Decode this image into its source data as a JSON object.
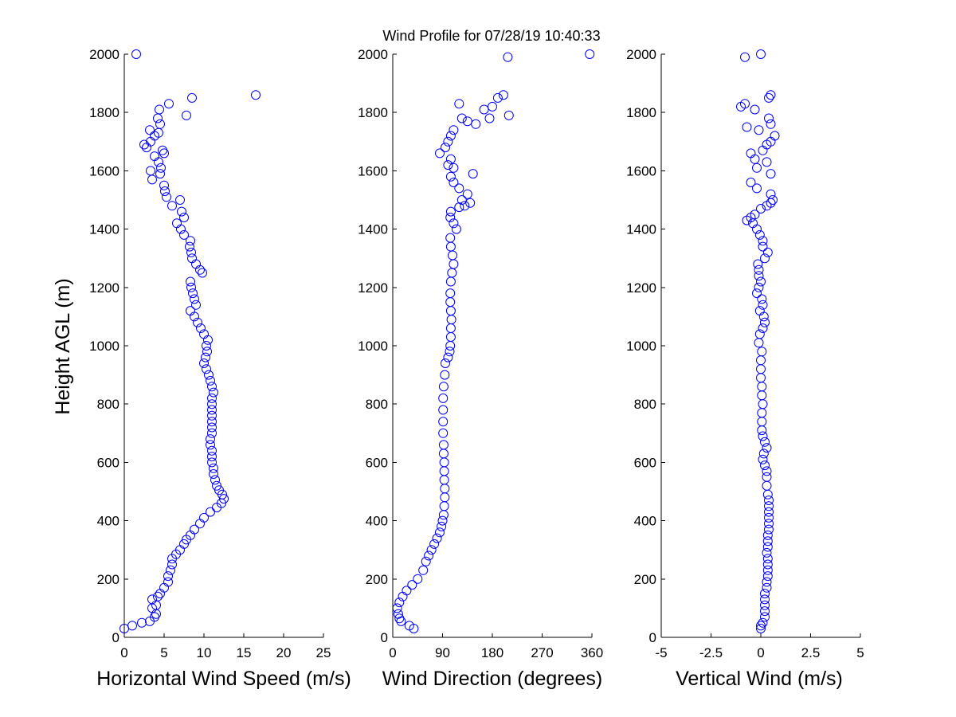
{
  "figure": {
    "title": "Wind Profile for  07/28/19 10:40:33",
    "marker_color": "#0000ff",
    "marker_shape": "circle-open"
  },
  "chart_data": [
    {
      "type": "scatter",
      "id": "speed",
      "xlabel": "Horizontal Wind Speed (m/s)",
      "ylabel": "Height AGL (m)",
      "xlim": [
        0,
        25
      ],
      "ylim": [
        0,
        2000
      ],
      "xticks": [
        "0",
        "5",
        "10",
        "15",
        "20",
        "25"
      ],
      "yticks": [
        "0",
        "200",
        "400",
        "600",
        "800",
        "1000",
        "1200",
        "1400",
        "1600",
        "1800",
        "2000"
      ],
      "xtick_values": [
        0,
        5,
        10,
        15,
        20,
        25
      ],
      "ytick_values": [
        0,
        200,
        400,
        600,
        800,
        1000,
        1200,
        1400,
        1600,
        1800,
        2000
      ],
      "points": [
        [
          0,
          30
        ],
        [
          1,
          40
        ],
        [
          2.2,
          50
        ],
        [
          3.2,
          55
        ],
        [
          3.8,
          70
        ],
        [
          4,
          80
        ],
        [
          3.5,
          100
        ],
        [
          4,
          110
        ],
        [
          3.5,
          130
        ],
        [
          4.2,
          140
        ],
        [
          4.5,
          150
        ],
        [
          5,
          170
        ],
        [
          5.5,
          190
        ],
        [
          5.5,
          210
        ],
        [
          5.8,
          230
        ],
        [
          6,
          250
        ],
        [
          6,
          270
        ],
        [
          6.5,
          285
        ],
        [
          7,
          300
        ],
        [
          7.5,
          320
        ],
        [
          7.8,
          335
        ],
        [
          8.3,
          350
        ],
        [
          8.8,
          370
        ],
        [
          9.5,
          390
        ],
        [
          10,
          410
        ],
        [
          10.8,
          430
        ],
        [
          11.6,
          445
        ],
        [
          12.2,
          460
        ],
        [
          12.5,
          475
        ],
        [
          12.3,
          490
        ],
        [
          11.9,
          505
        ],
        [
          11.6,
          520
        ],
        [
          11.4,
          540
        ],
        [
          11.2,
          560
        ],
        [
          11.2,
          580
        ],
        [
          11,
          600
        ],
        [
          11,
          620
        ],
        [
          11,
          640
        ],
        [
          10.8,
          660
        ],
        [
          10.8,
          680
        ],
        [
          11,
          700
        ],
        [
          11,
          720
        ],
        [
          11,
          740
        ],
        [
          11,
          760
        ],
        [
          11,
          780
        ],
        [
          11,
          800
        ],
        [
          11,
          820
        ],
        [
          11.2,
          840
        ],
        [
          11,
          860
        ],
        [
          10.8,
          880
        ],
        [
          10.6,
          900
        ],
        [
          10.3,
          920
        ],
        [
          10,
          940
        ],
        [
          10.2,
          960
        ],
        [
          10.4,
          980
        ],
        [
          10.3,
          1000
        ],
        [
          10.5,
          1020
        ],
        [
          10,
          1040
        ],
        [
          9.6,
          1060
        ],
        [
          9.2,
          1080
        ],
        [
          8.8,
          1100
        ],
        [
          8.3,
          1120
        ],
        [
          9,
          1140
        ],
        [
          8.8,
          1160
        ],
        [
          8.6,
          1180
        ],
        [
          8.4,
          1200
        ],
        [
          8.3,
          1220
        ],
        [
          9.8,
          1250
        ],
        [
          9.5,
          1260
        ],
        [
          9,
          1280
        ],
        [
          8.5,
          1300
        ],
        [
          8.4,
          1320
        ],
        [
          8.2,
          1340
        ],
        [
          8.3,
          1360
        ],
        [
          7.5,
          1380
        ],
        [
          7.1,
          1400
        ],
        [
          6.6,
          1420
        ],
        [
          7.5,
          1440
        ],
        [
          7.2,
          1460
        ],
        [
          6,
          1480
        ],
        [
          7,
          1500
        ],
        [
          5.3,
          1510
        ],
        [
          5.1,
          1530
        ],
        [
          5,
          1550
        ],
        [
          3.5,
          1570
        ],
        [
          4.5,
          1590
        ],
        [
          3.3,
          1600
        ],
        [
          4.6,
          1610
        ],
        [
          4.3,
          1630
        ],
        [
          3.8,
          1650
        ],
        [
          5,
          1660
        ],
        [
          4.8,
          1670
        ],
        [
          2.8,
          1680
        ],
        [
          2.5,
          1690
        ],
        [
          3.3,
          1700
        ],
        [
          3.8,
          1720
        ],
        [
          4.3,
          1730
        ],
        [
          3.2,
          1740
        ],
        [
          4.5,
          1760
        ],
        [
          4.2,
          1780
        ],
        [
          7.8,
          1790
        ],
        [
          4.4,
          1810
        ],
        [
          5.6,
          1830
        ],
        [
          8.5,
          1850
        ],
        [
          16.5,
          1860
        ],
        [
          1.5,
          2000
        ]
      ]
    },
    {
      "type": "scatter",
      "id": "direction",
      "xlabel": "Wind Direction (degrees)",
      "ylabel": "",
      "xlim": [
        0,
        360
      ],
      "ylim": [
        0,
        2000
      ],
      "xticks": [
        "0",
        "90",
        "180",
        "270",
        "360"
      ],
      "yticks": [
        "0",
        "200",
        "400",
        "600",
        "800",
        "1000",
        "1200",
        "1400",
        "1600",
        "1800",
        "2000"
      ],
      "xtick_values": [
        0,
        90,
        180,
        270,
        360
      ],
      "ytick_values": [
        0,
        200,
        400,
        600,
        800,
        1000,
        1200,
        1400,
        1600,
        1800,
        2000
      ],
      "points": [
        [
          38,
          30
        ],
        [
          30,
          40
        ],
        [
          15,
          55
        ],
        [
          12,
          65
        ],
        [
          10,
          80
        ],
        [
          8,
          100
        ],
        [
          12,
          120
        ],
        [
          18,
          140
        ],
        [
          25,
          160
        ],
        [
          35,
          180
        ],
        [
          45,
          200
        ],
        [
          55,
          230
        ],
        [
          60,
          260
        ],
        [
          65,
          280
        ],
        [
          70,
          300
        ],
        [
          75,
          320
        ],
        [
          80,
          340
        ],
        [
          85,
          360
        ],
        [
          88,
          380
        ],
        [
          90,
          400
        ],
        [
          92,
          420
        ],
        [
          93,
          450
        ],
        [
          94,
          480
        ],
        [
          94,
          510
        ],
        [
          93,
          540
        ],
        [
          93,
          570
        ],
        [
          93,
          600
        ],
        [
          92,
          630
        ],
        [
          92,
          660
        ],
        [
          91,
          700
        ],
        [
          91,
          740
        ],
        [
          91,
          780
        ],
        [
          91,
          820
        ],
        [
          92,
          860
        ],
        [
          94,
          900
        ],
        [
          95,
          940
        ],
        [
          100,
          960
        ],
        [
          103,
          980
        ],
        [
          104,
          1000
        ],
        [
          105,
          1030
        ],
        [
          105,
          1060
        ],
        [
          106,
          1090
        ],
        [
          105,
          1120
        ],
        [
          104,
          1150
        ],
        [
          104,
          1180
        ],
        [
          105,
          1220
        ],
        [
          107,
          1250
        ],
        [
          110,
          1280
        ],
        [
          108,
          1310
        ],
        [
          105,
          1340
        ],
        [
          104,
          1370
        ],
        [
          115,
          1400
        ],
        [
          110,
          1420
        ],
        [
          104,
          1440
        ],
        [
          105,
          1460
        ],
        [
          120,
          1475
        ],
        [
          130,
          1480
        ],
        [
          140,
          1490
        ],
        [
          125,
          1500
        ],
        [
          135,
          1520
        ],
        [
          120,
          1540
        ],
        [
          110,
          1560
        ],
        [
          105,
          1580
        ],
        [
          145,
          1590
        ],
        [
          110,
          1610
        ],
        [
          100,
          1620
        ],
        [
          105,
          1640
        ],
        [
          85,
          1660
        ],
        [
          95,
          1680
        ],
        [
          100,
          1700
        ],
        [
          105,
          1720
        ],
        [
          110,
          1740
        ],
        [
          150,
          1760
        ],
        [
          135,
          1770
        ],
        [
          125,
          1780
        ],
        [
          175,
          1780
        ],
        [
          210,
          1790
        ],
        [
          165,
          1810
        ],
        [
          180,
          1820
        ],
        [
          120,
          1830
        ],
        [
          190,
          1850
        ],
        [
          200,
          1860
        ],
        [
          208,
          1990
        ],
        [
          356,
          2000
        ]
      ]
    },
    {
      "type": "scatter",
      "id": "vertical",
      "xlabel": "Vertical Wind (m/s)",
      "ylabel": "",
      "xlim": [
        -5,
        5
      ],
      "ylim": [
        0,
        2000
      ],
      "xticks": [
        "-5",
        "-2.5",
        "0",
        "2.5",
        "5"
      ],
      "yticks": [
        "0",
        "200",
        "400",
        "600",
        "800",
        "1000",
        "1200",
        "1400",
        "1600",
        "1800",
        "2000"
      ],
      "xtick_values": [
        -5,
        -2.5,
        0,
        2.5,
        5
      ],
      "ytick_values": [
        0,
        200,
        400,
        600,
        800,
        1000,
        1200,
        1400,
        1600,
        1800,
        2000
      ],
      "points": [
        [
          0,
          30
        ],
        [
          0,
          40
        ],
        [
          0.1,
          50
        ],
        [
          0.2,
          70
        ],
        [
          0.2,
          90
        ],
        [
          0.2,
          110
        ],
        [
          0.2,
          130
        ],
        [
          0.2,
          150
        ],
        [
          0.3,
          170
        ],
        [
          0.3,
          190
        ],
        [
          0.35,
          210
        ],
        [
          0.35,
          230
        ],
        [
          0.35,
          250
        ],
        [
          0.35,
          270
        ],
        [
          0.3,
          290
        ],
        [
          0.35,
          310
        ],
        [
          0.35,
          330
        ],
        [
          0.35,
          350
        ],
        [
          0.4,
          370
        ],
        [
          0.4,
          390
        ],
        [
          0.4,
          410
        ],
        [
          0.4,
          430
        ],
        [
          0.4,
          450
        ],
        [
          0.4,
          470
        ],
        [
          0.35,
          490
        ],
        [
          0.3,
          520
        ],
        [
          0.3,
          550
        ],
        [
          0.3,
          570
        ],
        [
          0.2,
          590
        ],
        [
          0.1,
          610
        ],
        [
          0.15,
          630
        ],
        [
          0.3,
          650
        ],
        [
          0.2,
          670
        ],
        [
          0.1,
          690
        ],
        [
          0.05,
          710
        ],
        [
          0.05,
          740
        ],
        [
          0.05,
          770
        ],
        [
          0.1,
          800
        ],
        [
          0.05,
          830
        ],
        [
          0.05,
          860
        ],
        [
          0,
          890
        ],
        [
          0,
          920
        ],
        [
          0,
          950
        ],
        [
          0.05,
          980
        ],
        [
          -0.1,
          1010
        ],
        [
          -0.05,
          1040
        ],
        [
          0.1,
          1060
        ],
        [
          0.2,
          1080
        ],
        [
          0.15,
          1100
        ],
        [
          -0.05,
          1120
        ],
        [
          0.1,
          1140
        ],
        [
          0.05,
          1160
        ],
        [
          -0.2,
          1180
        ],
        [
          -0.1,
          1200
        ],
        [
          0,
          1220
        ],
        [
          -0.1,
          1240
        ],
        [
          -0.1,
          1260
        ],
        [
          -0.15,
          1280
        ],
        [
          0.2,
          1300
        ],
        [
          0.35,
          1320
        ],
        [
          0.1,
          1340
        ],
        [
          0.1,
          1360
        ],
        [
          -0.05,
          1380
        ],
        [
          -0.2,
          1400
        ],
        [
          -0.4,
          1420
        ],
        [
          -0.7,
          1430
        ],
        [
          -0.5,
          1440
        ],
        [
          -0.3,
          1450
        ],
        [
          0,
          1470
        ],
        [
          0.3,
          1480
        ],
        [
          0.5,
          1490
        ],
        [
          0.6,
          1500
        ],
        [
          0.5,
          1520
        ],
        [
          -0.2,
          1540
        ],
        [
          -0.5,
          1560
        ],
        [
          0.5,
          1590
        ],
        [
          -0.2,
          1610
        ],
        [
          0.3,
          1630
        ],
        [
          -0.3,
          1640
        ],
        [
          -0.5,
          1660
        ],
        [
          0.1,
          1670
        ],
        [
          0.3,
          1690
        ],
        [
          0.5,
          1700
        ],
        [
          0.7,
          1720
        ],
        [
          -0.1,
          1740
        ],
        [
          0.5,
          1760
        ],
        [
          0.4,
          1780
        ],
        [
          -0.7,
          1750
        ],
        [
          -0.3,
          1810
        ],
        [
          -1.0,
          1820
        ],
        [
          -0.8,
          1830
        ],
        [
          0.4,
          1850
        ],
        [
          0.5,
          1860
        ],
        [
          -0.8,
          1990
        ],
        [
          0,
          2000
        ]
      ]
    }
  ]
}
